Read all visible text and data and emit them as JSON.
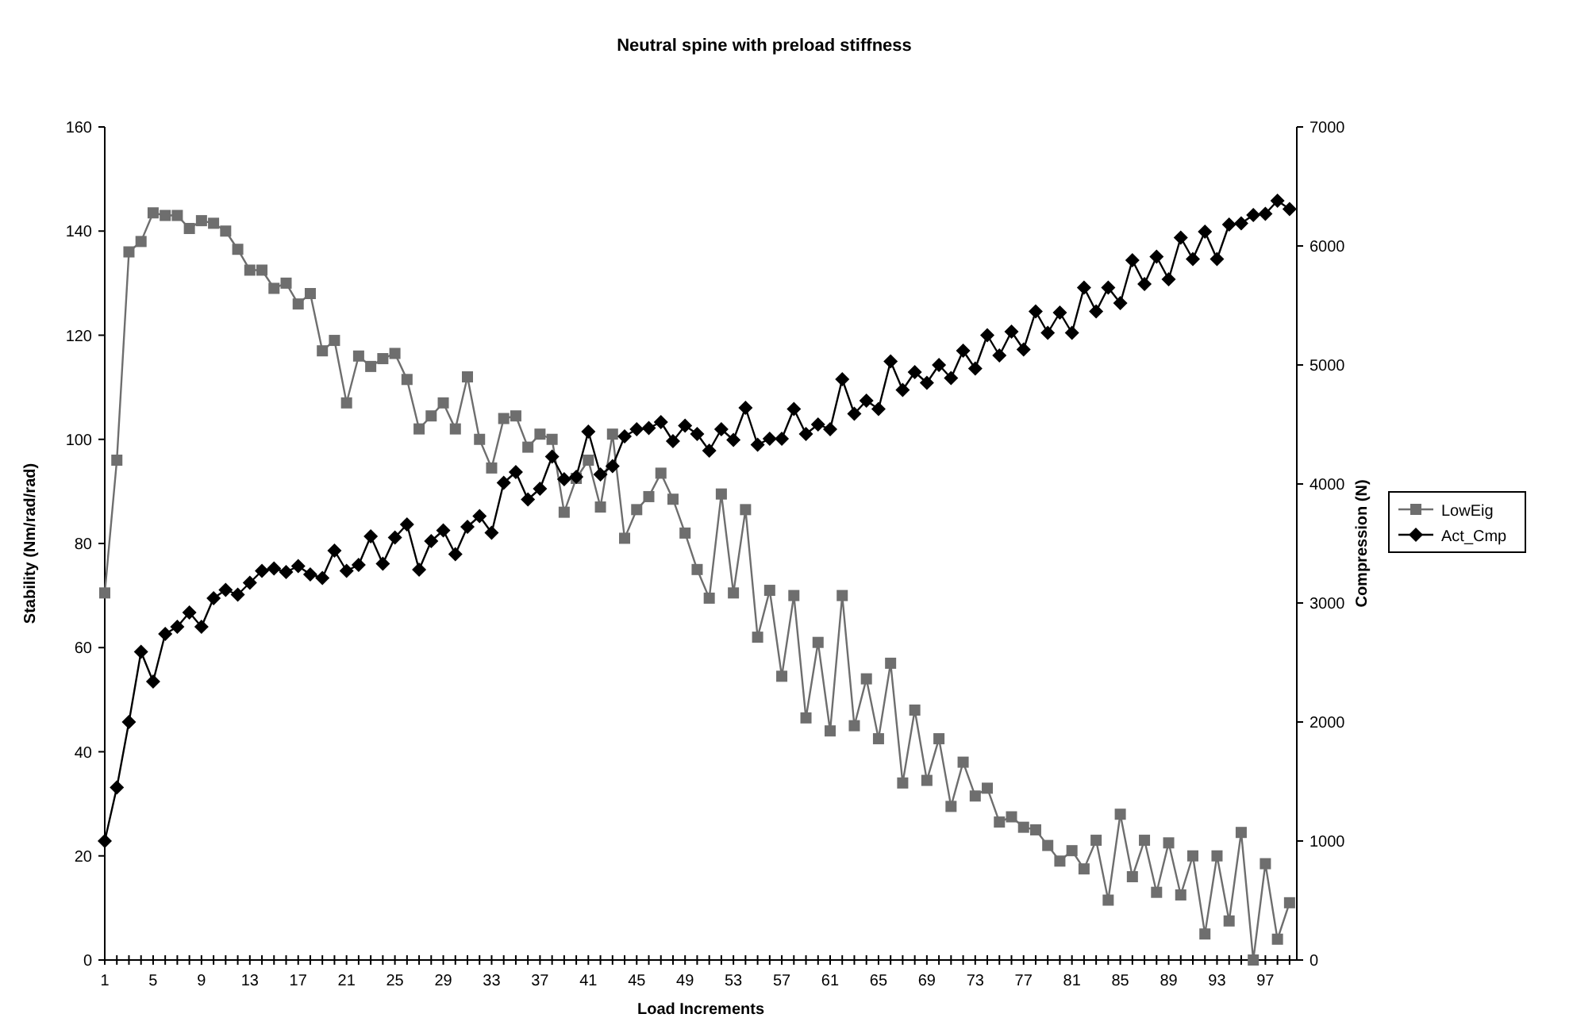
{
  "chart_data": {
    "type": "line",
    "title": "Neutral spine with preload stiffness",
    "xlabel": "Load Increments",
    "ylabel": "Stability (Nm/rad/rad)",
    "y2label": "Compression (N)",
    "categories": [
      "1",
      null,
      null,
      null,
      "5",
      null,
      null,
      null,
      "9",
      null,
      null,
      null,
      "13",
      null,
      null,
      null,
      "17",
      null,
      null,
      null,
      "21",
      null,
      null,
      null,
      "25",
      null,
      null,
      null,
      "29",
      null,
      null,
      null,
      "33",
      null,
      null,
      null,
      "37",
      null,
      null,
      null,
      "41",
      null,
      null,
      null,
      "45",
      null,
      null,
      null,
      "49",
      null,
      null,
      null,
      "53",
      null,
      null,
      null,
      "57",
      null,
      null,
      null,
      "61",
      null,
      null,
      null,
      "65",
      null,
      null,
      null,
      "69",
      null,
      null,
      null,
      "73",
      null,
      null,
      null,
      "77",
      null,
      null,
      null,
      "81",
      null,
      null,
      null,
      "85",
      null,
      null,
      null,
      "89",
      null,
      null,
      null,
      "93",
      null,
      null,
      null,
      "97",
      null,
      null
    ],
    "series": [
      {
        "name": "LowEig",
        "color": "#6e6e6e",
        "marker": "square",
        "values": [
          70.5,
          96,
          136,
          138,
          143.5,
          143,
          143,
          140.5,
          142,
          141.5,
          140,
          136.5,
          132.5,
          132.5,
          129,
          130,
          126,
          128,
          117,
          119,
          107,
          116,
          114,
          115.5,
          116.5,
          111.5,
          102,
          104.5,
          107,
          102,
          112,
          100,
          94.5,
          104,
          104.5,
          98.5,
          101,
          100,
          86,
          92.5,
          96,
          87,
          101,
          81,
          86.5,
          89,
          93.5,
          88.5,
          82,
          75,
          69.5,
          89.5,
          70.5,
          86.5,
          62,
          71,
          54.5,
          70,
          46.5,
          61,
          44,
          70,
          45,
          54,
          42.5,
          57,
          34,
          48,
          34.5,
          42.5,
          29.5,
          38,
          31.5,
          33,
          26.5,
          27.5,
          25.5,
          25,
          22,
          19,
          21,
          17.5,
          23,
          11.5,
          28,
          16,
          23,
          13,
          22.5,
          12.5,
          20,
          5,
          20,
          7.5,
          24.5,
          0,
          18.5,
          4,
          11
        ]
      },
      {
        "name": "Act_Cmp",
        "color": "#000000",
        "marker": "diamond",
        "axis": "y2",
        "values": [
          1000,
          1450,
          2000,
          2590,
          2340,
          2740,
          2800,
          2920,
          2800,
          3040,
          3110,
          3070,
          3170,
          3270,
          3290,
          3260,
          3310,
          3240,
          3210,
          3440,
          3270,
          3320,
          3560,
          3330,
          3550,
          3660,
          3280,
          3520,
          3610,
          3410,
          3640,
          3730,
          3590,
          4010,
          4100,
          3870,
          3960,
          4230,
          4040,
          4060,
          4440,
          4080,
          4150,
          4400,
          4460,
          4470,
          4520,
          4360,
          4490,
          4420,
          4280,
          4460,
          4370,
          4640,
          4330,
          4380,
          4380,
          4630,
          4420,
          4500,
          4460,
          4880,
          4590,
          4700,
          4630,
          5030,
          4790,
          4940,
          4850,
          5000,
          4890,
          5120,
          4970,
          5250,
          5080,
          5280,
          5130,
          5450,
          5270,
          5440,
          5270,
          5650,
          5450,
          5650,
          5520,
          5880,
          5680,
          5910,
          5720,
          6070,
          5890,
          6120,
          5890,
          6180,
          6190,
          6260,
          6270,
          6380,
          6310
        ]
      }
    ],
    "ylim": [
      0,
      160
    ],
    "yticks": [
      0,
      20,
      40,
      60,
      80,
      100,
      120,
      140,
      160
    ],
    "y2lim": [
      0,
      7000
    ],
    "y2ticks": [
      0,
      1000,
      2000,
      3000,
      4000,
      5000,
      6000,
      7000
    ],
    "legend": "right",
    "grid": false,
    "line_style": "solid"
  }
}
